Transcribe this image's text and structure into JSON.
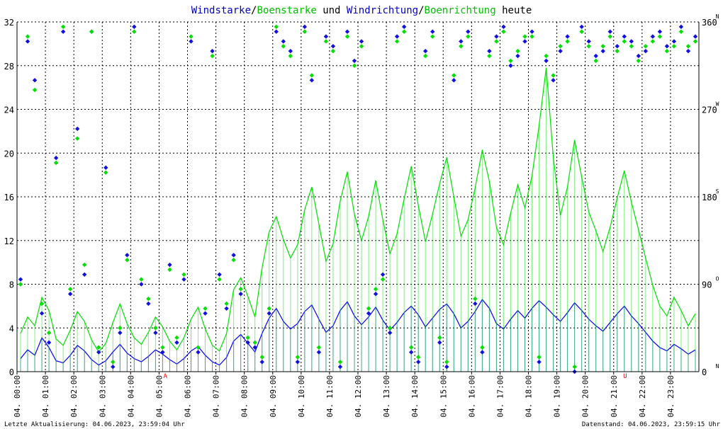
{
  "chart_data": {
    "type": "scatter",
    "title_parts": [
      {
        "text": "Windstarke",
        "color": "#0000c8"
      },
      {
        "text": "/",
        "color": "#000000"
      },
      {
        "text": "Boenstarke",
        "color": "#00c000"
      },
      {
        "text": " und ",
        "color": "#000000"
      },
      {
        "text": "Windrichtung",
        "color": "#0000c8"
      },
      {
        "text": "/",
        "color": "#000000"
      },
      {
        "text": "Boenrichtung",
        "color": "#00c000"
      },
      {
        "text": " heute",
        "color": "#000000"
      }
    ],
    "y_left": {
      "min": 0,
      "max": 32,
      "ticks": [
        "0",
        "4",
        "8",
        "12",
        "16",
        "20",
        "24",
        "28",
        "32"
      ]
    },
    "y_right": {
      "min": 0,
      "max": 360,
      "ticks": [
        "0",
        "90",
        "180",
        "270",
        "360"
      ],
      "compass": [
        "N",
        "O",
        "S",
        "W",
        "N"
      ]
    },
    "x_ticks": [
      "04. 00:00",
      "04. 01:00",
      "04. 02:00",
      "04. 03:00",
      "04. 04:00",
      "04. 05:00",
      "04. 06:00",
      "04. 07:00",
      "04. 08:00",
      "04. 09:00",
      "04. 10:00",
      "04. 11:00",
      "04. 12:00",
      "04. 13:00",
      "04. 14:00",
      "04. 15:00",
      "04. 16:00",
      "04. 17:00",
      "04. 18:00",
      "04. 19:00",
      "04. 20:00",
      "04. 21:00",
      "04. 22:00",
      "04. 23:00"
    ],
    "markers": [
      {
        "label": "A",
        "hour": 5.22,
        "color": "#ff0000"
      },
      {
        "label": "U",
        "hour": 21.4,
        "color": "#ff0000"
      }
    ],
    "series": [
      {
        "name": "Windstarke",
        "kind": "line",
        "color": "#0000ff",
        "hour_range": [
          0,
          24
        ],
        "values": [
          1.2,
          2.0,
          1.5,
          3.1,
          2.2,
          1.0,
          0.8,
          1.5,
          2.4,
          1.9,
          1.1,
          0.6,
          1.0,
          1.8,
          2.5,
          1.7,
          1.2,
          0.9,
          1.4,
          2.0,
          1.6,
          1.1,
          0.7,
          1.2,
          1.9,
          2.3,
          1.5,
          0.9,
          0.6,
          1.3,
          2.8,
          3.4,
          2.6,
          1.8,
          3.5,
          4.9,
          5.8,
          4.6,
          3.9,
          4.4,
          5.5,
          6.1,
          4.8,
          3.6,
          4.2,
          5.6,
          6.4,
          5.1,
          4.3,
          5.0,
          5.9,
          4.7,
          3.8,
          4.5,
          5.4,
          6.0,
          5.2,
          4.1,
          4.9,
          5.7,
          6.2,
          5.3,
          4.0,
          4.6,
          5.5,
          6.6,
          5.8,
          4.4,
          3.9,
          4.8,
          5.6,
          4.9,
          5.8,
          6.5,
          5.9,
          5.2,
          4.6,
          5.4,
          6.3,
          5.6,
          4.8,
          4.2,
          3.7,
          4.5,
          5.3,
          6.0,
          5.1,
          4.4,
          3.6,
          2.8,
          2.2,
          1.9,
          2.5,
          2.1,
          1.6,
          2.0
        ]
      },
      {
        "name": "Boenstarke",
        "kind": "line",
        "color": "#00e000",
        "hour_range": [
          0,
          24
        ],
        "values": [
          3.5,
          5.0,
          4.2,
          6.8,
          5.6,
          3.0,
          2.4,
          3.8,
          5.5,
          4.6,
          2.9,
          1.8,
          2.6,
          4.5,
          6.2,
          4.4,
          3.1,
          2.5,
          3.6,
          5.0,
          4.1,
          2.8,
          2.0,
          3.1,
          4.8,
          5.9,
          3.9,
          2.4,
          1.9,
          3.5,
          7.5,
          8.6,
          6.9,
          5.0,
          9.5,
          12.8,
          14.2,
          12.1,
          10.4,
          11.6,
          14.8,
          16.9,
          13.5,
          10.1,
          11.7,
          15.6,
          18.3,
          14.4,
          12.0,
          14.2,
          17.5,
          13.9,
          10.8,
          12.6,
          15.8,
          18.8,
          15.2,
          11.9,
          14.4,
          17.2,
          19.6,
          16.0,
          12.4,
          13.9,
          16.8,
          20.3,
          17.4,
          13.2,
          11.6,
          14.5,
          17.1,
          15.0,
          17.9,
          22.5,
          27.8,
          19.6,
          14.3,
          16.9,
          21.2,
          17.8,
          14.6,
          12.9,
          11.0,
          13.2,
          15.9,
          18.4,
          15.5,
          13.0,
          10.4,
          7.9,
          6.0,
          5.1,
          6.8,
          5.6,
          4.2,
          5.3
        ]
      },
      {
        "name": "Windrichtung",
        "kind": "scatter",
        "color": "#1010e0",
        "hour_range": [
          0,
          24
        ],
        "values": [
          95,
          340,
          300,
          60,
          30,
          220,
          350,
          80,
          250,
          100,
          350,
          20,
          210,
          5,
          40,
          120,
          355,
          90,
          70,
          40,
          20,
          110,
          30,
          95,
          340,
          20,
          60,
          330,
          100,
          65,
          120,
          80,
          30,
          25,
          10,
          60,
          350,
          340,
          330,
          10,
          355,
          300,
          20,
          345,
          335,
          5,
          350,
          320,
          340,
          60,
          80,
          100,
          40,
          345,
          355,
          20,
          10,
          330,
          350,
          30,
          5,
          300,
          340,
          350,
          70,
          20,
          330,
          345,
          355,
          315,
          325,
          340,
          350,
          10,
          320,
          300,
          330,
          345,
          0,
          355,
          340,
          325,
          330,
          350,
          335,
          345,
          340,
          325,
          330,
          345,
          350,
          335,
          340,
          355,
          330,
          345
        ]
      },
      {
        "name": "Boenrichtung",
        "kind": "scatter",
        "color": "#00e000",
        "hour_range": [
          0,
          24
        ],
        "values": [
          90,
          345,
          290,
          70,
          40,
          215,
          355,
          85,
          240,
          110,
          350,
          25,
          205,
          10,
          45,
          115,
          350,
          95,
          75,
          45,
          25,
          105,
          35,
          100,
          345,
          25,
          65,
          325,
          95,
          70,
          115,
          85,
          35,
          30,
          15,
          65,
          355,
          335,
          325,
          15,
          350,
          305,
          25,
          340,
          330,
          10,
          345,
          315,
          335,
          65,
          85,
          95,
          45,
          340,
          350,
          25,
          15,
          325,
          345,
          35,
          10,
          305,
          335,
          345,
          75,
          25,
          325,
          340,
          350,
          320,
          330,
          345,
          345,
          15,
          325,
          305,
          335,
          340,
          5,
          350,
          335,
          320,
          335,
          345,
          330,
          340,
          335,
          320,
          335,
          340,
          345,
          330,
          335,
          350,
          335,
          340
        ]
      }
    ]
  },
  "footer": {
    "left": "Letzte Aktualisierung: 04.06.2023, 23:59:04 Uhr",
    "right": "Datenstand: 04.06.2023, 23:59:15 Uhr"
  },
  "colors": {
    "grid": "#000000",
    "axis": "#000000",
    "background": "#ffffff"
  }
}
